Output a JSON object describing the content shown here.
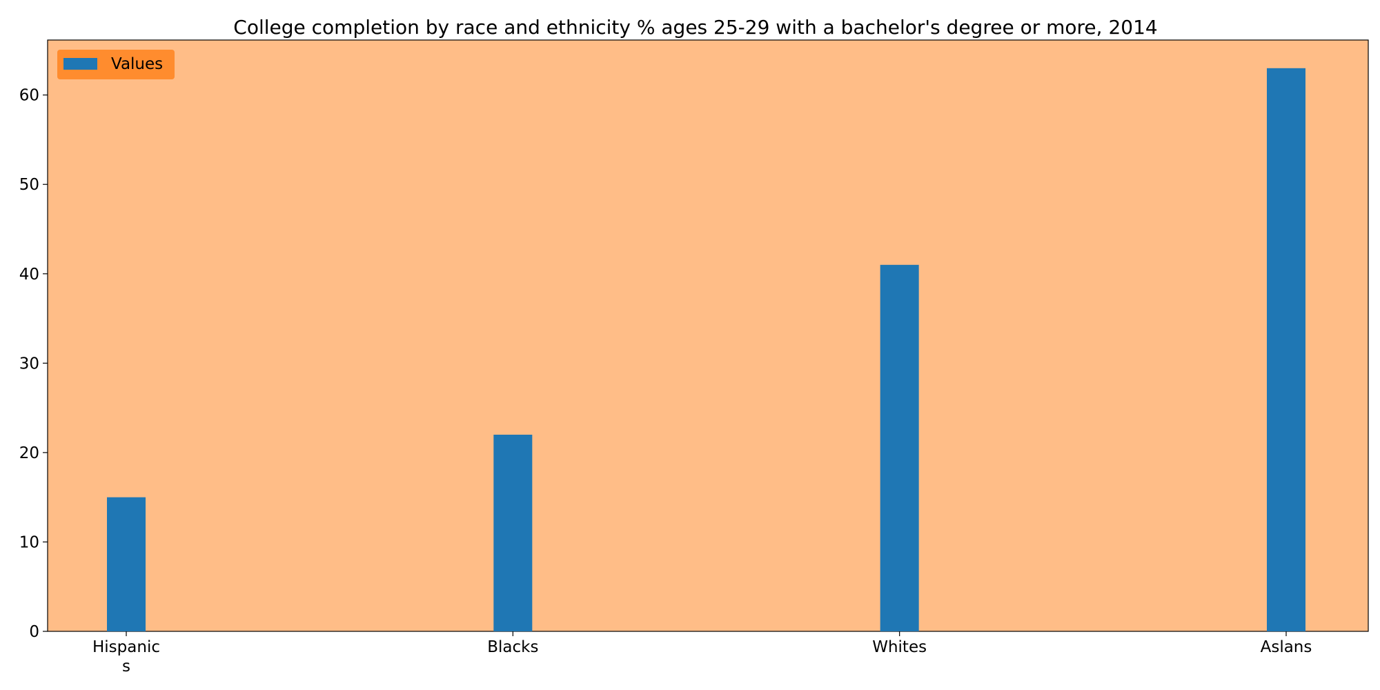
{
  "chart_data": {
    "type": "bar",
    "title": "College completion by race and ethnicity % ages 25-29 with a bachelor's degree or more, 2014",
    "xlabel": "",
    "ylabel": "",
    "categories": [
      "Hispanic\ns",
      "Blacks",
      "Whites",
      "Aslans"
    ],
    "series": [
      {
        "name": "Values",
        "values": [
          15,
          22,
          41,
          63
        ],
        "color": "#1f77b4"
      }
    ],
    "ylim": [
      0,
      66.15
    ],
    "yticks": [
      0,
      10,
      20,
      30,
      40,
      50,
      60
    ],
    "grid": false,
    "legend_position": "upper-left",
    "colors": {
      "plot_background": "#ffbd87",
      "legend_background": "#ff8c2e",
      "bar": "#1f77b4"
    }
  }
}
